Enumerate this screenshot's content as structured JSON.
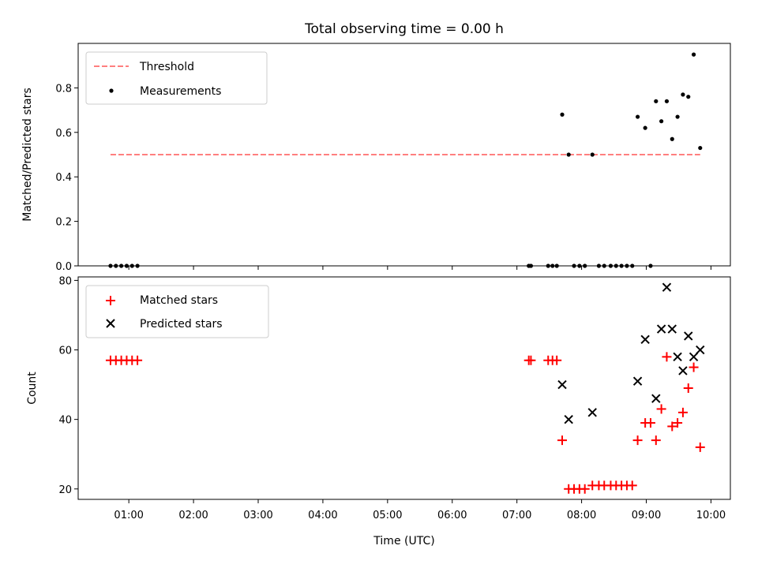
{
  "chart_data": [
    {
      "type": "scatter",
      "title": "Total observing time = 0.00 h",
      "ylabel": "Matched/Predicted stars",
      "xlabel": "",
      "xlim": [
        "00:13",
        "10:18"
      ],
      "ylim": [
        0,
        1.0
      ],
      "xticks": [
        "01:00",
        "02:00",
        "03:00",
        "04:00",
        "05:00",
        "06:00",
        "07:00",
        "08:00",
        "09:00",
        "10:00"
      ],
      "yticks": [
        "0.0",
        "0.2",
        "0.4",
        "0.6",
        "0.8"
      ],
      "legend_position": "upper left",
      "series": [
        {
          "name": "Threshold",
          "style": "dashed-line",
          "color": "#ff7f7f",
          "x": [
            "00:43",
            "09:50"
          ],
          "y": [
            0.5,
            0.5
          ]
        },
        {
          "name": "Measurements",
          "style": "dot",
          "color": "#000000",
          "x": [
            "00:43",
            "00:48",
            "00:53",
            "00:58",
            "01:03",
            "01:08",
            "07:11",
            "07:13",
            "07:29",
            "07:33",
            "07:37",
            "07:42",
            "07:48",
            "07:53",
            "07:58",
            "08:03",
            "08:10",
            "08:16",
            "08:21",
            "08:27",
            "08:32",
            "08:37",
            "08:42",
            "08:47",
            "08:52",
            "08:59",
            "09:04",
            "09:09",
            "09:14",
            "09:19",
            "09:24",
            "09:29",
            "09:34",
            "09:39",
            "09:44",
            "09:50"
          ],
          "y": [
            0,
            0,
            0,
            0,
            0,
            0,
            0,
            0,
            0,
            0,
            0,
            0.68,
            0.5,
            0,
            0,
            0,
            0.5,
            0,
            0,
            0,
            0,
            0,
            0,
            0,
            0.67,
            0.62,
            0,
            0.74,
            0.65,
            0.74,
            0.57,
            0.67,
            0.77,
            0.76,
            0.95,
            0.53
          ]
        }
      ]
    },
    {
      "type": "scatter",
      "title": "",
      "xlabel": "Time (UTC)",
      "ylabel": "Count",
      "xlim": [
        "00:13",
        "10:18"
      ],
      "ylim": [
        17,
        81
      ],
      "xticks": [
        "01:00",
        "02:00",
        "03:00",
        "04:00",
        "05:00",
        "06:00",
        "07:00",
        "08:00",
        "09:00",
        "10:00"
      ],
      "yticks": [
        "20",
        "40",
        "60",
        "80"
      ],
      "legend_position": "upper left",
      "series": [
        {
          "name": "Matched stars",
          "style": "plus",
          "color": "#ff0000",
          "x": [
            "00:43",
            "00:48",
            "00:53",
            "00:58",
            "01:03",
            "01:08",
            "07:11",
            "07:13",
            "07:29",
            "07:33",
            "07:37",
            "07:42",
            "07:48",
            "07:53",
            "07:58",
            "08:03",
            "08:10",
            "08:16",
            "08:21",
            "08:27",
            "08:32",
            "08:37",
            "08:42",
            "08:47",
            "08:52",
            "08:59",
            "09:04",
            "09:09",
            "09:14",
            "09:19",
            "09:24",
            "09:29",
            "09:34",
            "09:39",
            "09:44",
            "09:50"
          ],
          "y": [
            57,
            57,
            57,
            57,
            57,
            57,
            57,
            57,
            57,
            57,
            57,
            34,
            20,
            20,
            20,
            20,
            21,
            21,
            21,
            21,
            21,
            21,
            21,
            21,
            34,
            39,
            39,
            34,
            43,
            58,
            38,
            39,
            42,
            49,
            55,
            32
          ]
        },
        {
          "name": "Predicted stars",
          "style": "x",
          "color": "#000000",
          "x": [
            "07:42",
            "07:48",
            "08:10",
            "08:52",
            "08:59",
            "09:09",
            "09:14",
            "09:24",
            "09:29",
            "09:19",
            "09:34",
            "09:39",
            "09:44",
            "09:50"
          ],
          "y": [
            50,
            40,
            42,
            51,
            63,
            46,
            66,
            66,
            58,
            78,
            54,
            64,
            58,
            60
          ]
        }
      ]
    }
  ]
}
